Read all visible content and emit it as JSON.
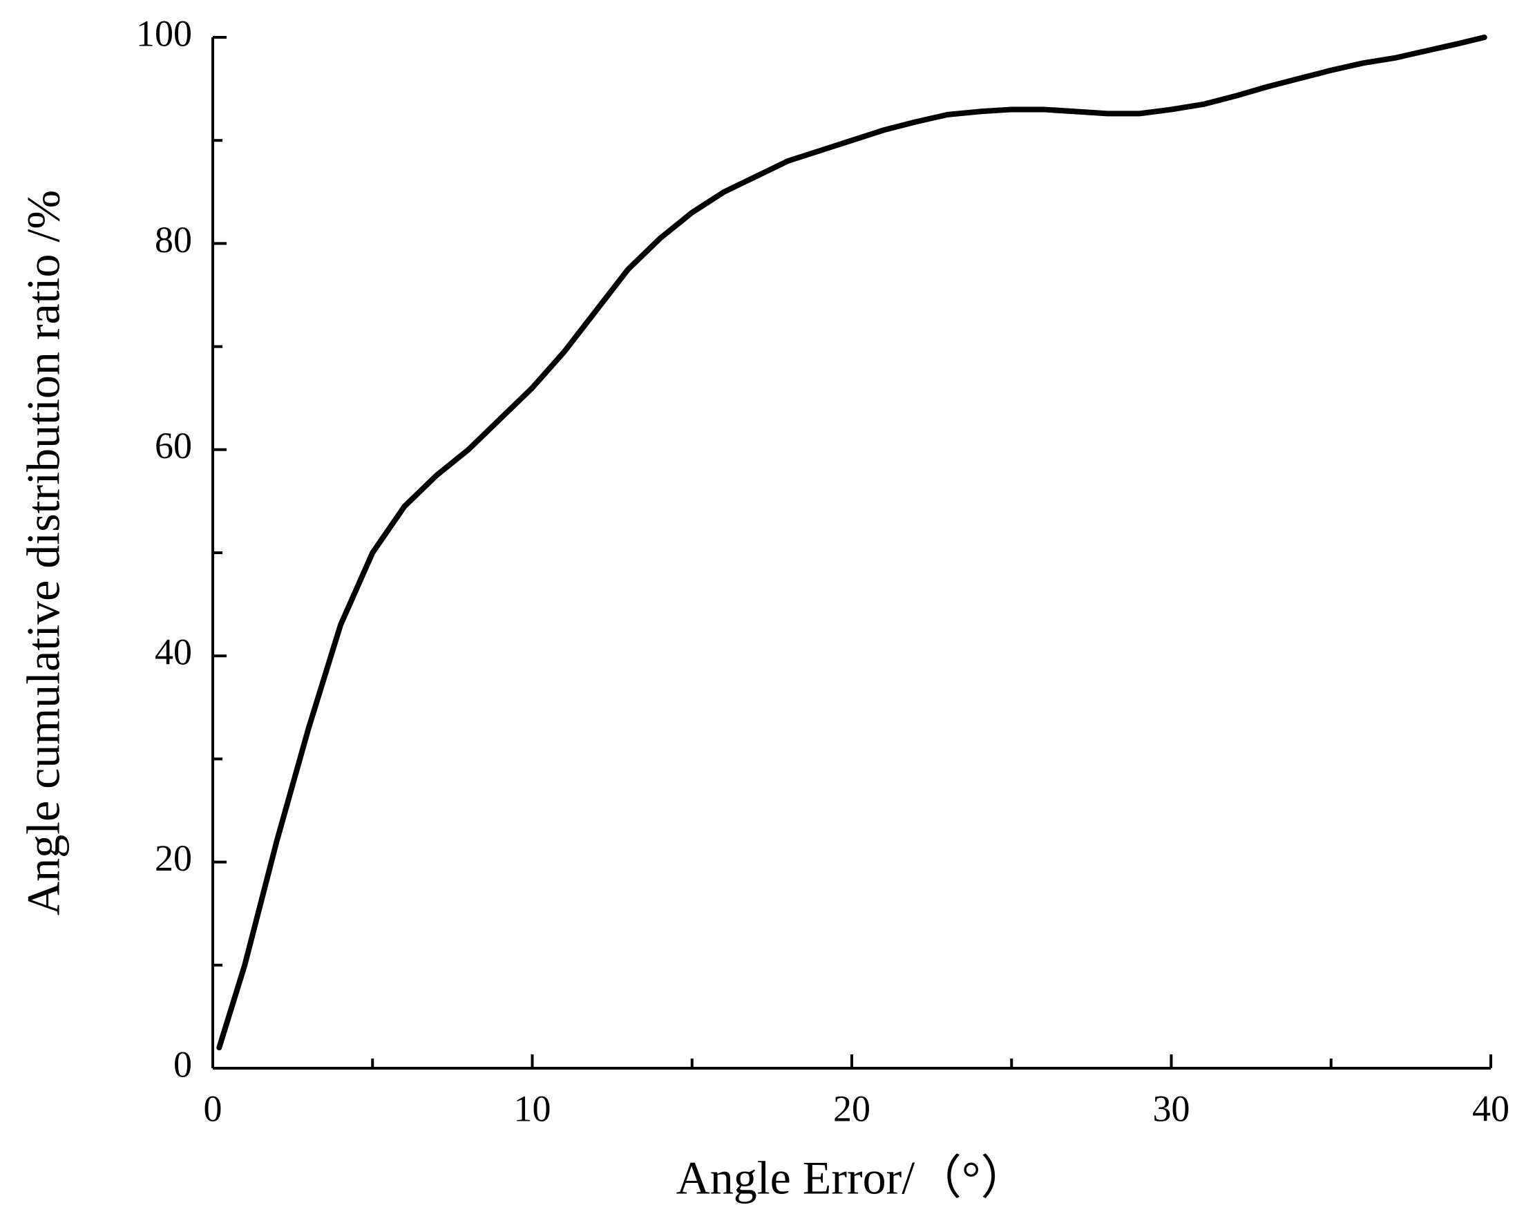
{
  "chart_data": {
    "type": "line",
    "xlabel": "Angle Error/（°）",
    "ylabel": "Angle cumulative distribution ratio /%",
    "x": [
      0.2,
      1,
      2,
      3,
      4,
      5,
      6,
      7,
      8,
      9,
      10,
      11,
      12,
      13,
      14,
      15,
      16,
      17,
      18,
      19,
      20,
      21,
      22,
      23,
      24,
      25,
      26,
      27,
      28,
      29,
      30,
      31,
      32,
      33,
      34,
      35,
      36,
      37,
      38,
      39,
      39.8
    ],
    "series": [
      {
        "color": "#000000",
        "values": [
          2,
          10,
          22,
          33,
          43,
          50,
          54.5,
          57.5,
          60,
          63,
          66,
          69.5,
          73.5,
          77.5,
          80.5,
          83,
          85,
          86.5,
          88,
          89,
          90,
          91,
          91.8,
          92.5,
          92.8,
          93,
          93,
          92.8,
          92.6,
          92.6,
          93,
          93.5,
          94.3,
          95.2,
          96,
          96.8,
          97.5,
          98,
          98.7,
          99.4,
          100
        ]
      }
    ],
    "xlim": [
      0,
      40
    ],
    "xticks": [
      0,
      10,
      20,
      30,
      40
    ],
    "xticks_minor": [
      5,
      15,
      25,
      35
    ],
    "ylim": [
      0,
      100
    ],
    "yticks": [
      0,
      20,
      40,
      60,
      80,
      100
    ],
    "yticks_minor": [
      10,
      30,
      50,
      70,
      90
    ],
    "grid": false
  }
}
